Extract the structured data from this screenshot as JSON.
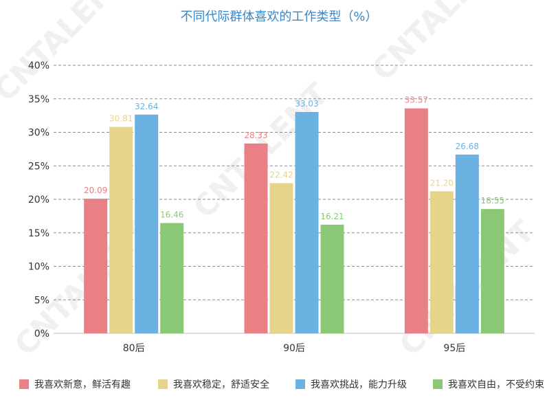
{
  "chart_data": {
    "type": "bar",
    "title": "不同代际群体喜欢的工作类型（%）",
    "categories": [
      "80后",
      "90后",
      "95后"
    ],
    "series": [
      {
        "name": "我喜欢新意，鲜活有趣",
        "color": "#e88085",
        "values": [
          20.09,
          28.33,
          33.57
        ]
      },
      {
        "name": "我喜欢稳定，舒适安全",
        "color": "#e6d48a",
        "values": [
          30.81,
          22.42,
          21.2
        ]
      },
      {
        "name": "我喜欢挑战，能力升级",
        "color": "#6bb1e2",
        "values": [
          32.64,
          33.03,
          26.68
        ]
      },
      {
        "name": "我喜欢自由，不受约束",
        "color": "#8ac876",
        "values": [
          16.46,
          16.21,
          18.55
        ]
      }
    ],
    "value_labels": [
      [
        "20.09",
        "28.33",
        "33.57"
      ],
      [
        "30.81",
        "22.42",
        "21.20"
      ],
      [
        "32.64",
        "33.03",
        "26.68"
      ],
      [
        "16.46",
        "16.21",
        "18.55"
      ]
    ],
    "ylim": [
      0,
      40
    ],
    "yticks": [
      "0%",
      "5%",
      "10%",
      "15%",
      "20%",
      "25%",
      "30%",
      "35%",
      "40%"
    ],
    "grid": true,
    "legend_position": "bottom"
  },
  "colors": {
    "title": "#3b86c6",
    "axis_text": "#333333",
    "grid": "#8a8a8a"
  },
  "watermark_text": "CNTALENT"
}
